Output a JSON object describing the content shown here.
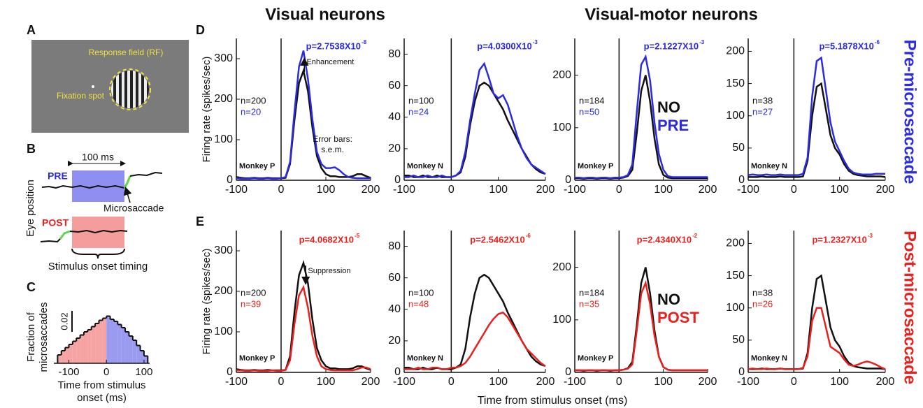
{
  "headers": {
    "visual": "Visual neurons",
    "visual_motor": "Visual-motor neurons",
    "pre": "Pre-microsaccade",
    "post": "Post-microsaccade",
    "x_axis": "Time from stimulus onset (ms)"
  },
  "panels": {
    "A": "A",
    "B": "B",
    "C": "C",
    "D": "D",
    "E": "E"
  },
  "panel_a": {
    "rf": "Response field (RF)",
    "fixation": "Fixation spot"
  },
  "panel_b": {
    "duration": "100 ms",
    "pre": "PRE",
    "post": "POST",
    "microsaccade": "Microsaccade",
    "ylabel": "Eye position",
    "onset": "Stimulus onset timing"
  },
  "chart_data": [
    {
      "type": "histogram",
      "ylabel": [
        "Fraction of",
        "microsaccades"
      ],
      "xlabel": [
        "Time from stimulus",
        "onset (ms)"
      ],
      "bins": [
        -130,
        -120,
        -110,
        -100,
        -90,
        -80,
        -70,
        -60,
        -50,
        -40,
        -30,
        -20,
        -10,
        0,
        10,
        20,
        30,
        40,
        50,
        60,
        70,
        80,
        90,
        100,
        110
      ],
      "values": [
        0.008,
        0.012,
        0.015,
        0.018,
        0.021,
        0.024,
        0.027,
        0.03,
        0.032,
        0.035,
        0.038,
        0.041,
        0.043,
        0.045,
        0.042,
        0.04,
        0.037,
        0.034,
        0.03,
        0.026,
        0.022,
        0.017,
        0.012,
        0.007
      ],
      "colors": {
        "before": "#f5a3a3",
        "after": "#9a9af0"
      },
      "xlim": [
        -140,
        115
      ],
      "ylim": [
        0,
        0.05
      ],
      "xticks": [
        -100,
        0,
        100
      ],
      "scale_bar": {
        "value": 0.02,
        "label": "0.02"
      }
    },
    {
      "type": "line",
      "ylabel": "Firing rate (spikes/sec)",
      "monkey": "Monkey P",
      "n_labels": [
        "n=200",
        "n=20"
      ],
      "p_value": "p=2.7538X10",
      "p_exponent": "-8",
      "annotations": [
        "Enhancement",
        "Error bars:",
        "s.e.m."
      ],
      "xlim": [
        -100,
        200
      ],
      "ylim": [
        0,
        350
      ],
      "xticks": [
        -100,
        0,
        100,
        200
      ],
      "yticks": [
        0,
        100,
        200,
        300
      ],
      "x": [
        -100,
        -90,
        -80,
        -70,
        -60,
        -50,
        -40,
        -30,
        -20,
        -10,
        0,
        10,
        20,
        30,
        40,
        50,
        60,
        70,
        80,
        90,
        100,
        110,
        120,
        130,
        140,
        150,
        160,
        170,
        180,
        190,
        200
      ],
      "series": [
        {
          "color": "#111111",
          "values": [
            8,
            6,
            5,
            5,
            6,
            5,
            5,
            6,
            5,
            5,
            5,
            6,
            40,
            150,
            240,
            270,
            220,
            130,
            60,
            30,
            15,
            10,
            10,
            8,
            8,
            8,
            10,
            15,
            15,
            10,
            6
          ]
        },
        {
          "color": "#2b2be0",
          "values": [
            5,
            4,
            4,
            4,
            5,
            4,
            4,
            5,
            4,
            4,
            5,
            8,
            45,
            170,
            280,
            320,
            250,
            150,
            70,
            40,
            30,
            30,
            32,
            25,
            15,
            8,
            6,
            5,
            5,
            5,
            5
          ]
        }
      ]
    },
    {
      "type": "line",
      "monkey": "Monkey N",
      "n_labels": [
        "n=100",
        "n=24"
      ],
      "p_value": "p=4.0300X10",
      "p_exponent": "-3",
      "xlim": [
        -100,
        200
      ],
      "ylim": [
        0,
        90
      ],
      "xticks": [
        -100,
        0,
        100,
        200
      ],
      "yticks": [
        0,
        20,
        40,
        60,
        80
      ],
      "x": [
        -100,
        -90,
        -80,
        -70,
        -60,
        -50,
        -40,
        -30,
        -20,
        -10,
        0,
        10,
        20,
        30,
        40,
        50,
        60,
        70,
        80,
        90,
        100,
        110,
        120,
        130,
        140,
        150,
        160,
        170,
        180,
        190,
        200
      ],
      "series": [
        {
          "color": "#111111",
          "values": [
            3,
            3,
            2,
            2,
            3,
            2,
            2,
            3,
            2,
            2,
            2,
            3,
            5,
            15,
            35,
            50,
            60,
            62,
            60,
            55,
            50,
            45,
            38,
            32,
            26,
            20,
            15,
            10,
            7,
            5,
            4
          ]
        },
        {
          "color": "#2b2be0",
          "values": [
            2,
            2,
            3,
            2,
            2,
            3,
            2,
            2,
            3,
            2,
            2,
            3,
            6,
            18,
            38,
            55,
            70,
            74,
            65,
            55,
            52,
            54,
            48,
            38,
            28,
            20,
            14,
            10,
            8,
            6,
            4
          ]
        }
      ]
    },
    {
      "type": "line",
      "monkey": "Monkey P",
      "n_labels": [
        "n=184",
        "n=50"
      ],
      "p_value": "p=2.1227X10",
      "p_exponent": "-3",
      "legend": true,
      "xlim": [
        -100,
        200
      ],
      "ylim": [
        0,
        270
      ],
      "xticks": [
        -100,
        0,
        100,
        200
      ],
      "yticks": [
        0,
        100,
        200
      ],
      "x": [
        -100,
        -90,
        -80,
        -70,
        -60,
        -50,
        -40,
        -30,
        -20,
        -10,
        0,
        10,
        20,
        30,
        40,
        50,
        60,
        70,
        80,
        90,
        100,
        110,
        120,
        130,
        140,
        150,
        160,
        170,
        180,
        190,
        200
      ],
      "series": [
        {
          "name": "NO",
          "color": "#111111",
          "values": [
            4,
            4,
            3,
            4,
            4,
            3,
            4,
            4,
            3,
            4,
            4,
            5,
            8,
            20,
            90,
            170,
            200,
            150,
            80,
            30,
            10,
            5,
            4,
            4,
            4,
            4,
            4,
            4,
            4,
            4,
            4
          ]
        },
        {
          "name": "PRE",
          "color": "#2b2be0",
          "values": [
            5,
            5,
            4,
            5,
            5,
            4,
            5,
            5,
            4,
            5,
            5,
            6,
            10,
            30,
            130,
            220,
            235,
            190,
            110,
            50,
            20,
            8,
            6,
            6,
            6,
            6,
            6,
            6,
            6,
            6,
            6
          ]
        }
      ]
    },
    {
      "type": "line",
      "monkey": "Monkey N",
      "n_labels": [
        "n=38",
        "n=27"
      ],
      "p_value": "p=5.1878X10",
      "p_exponent": "-6",
      "xlim": [
        -100,
        200
      ],
      "ylim": [
        0,
        220
      ],
      "xticks": [
        -100,
        0,
        100,
        200
      ],
      "yticks": [
        0,
        50,
        100,
        150,
        200
      ],
      "x": [
        -100,
        -90,
        -80,
        -70,
        -60,
        -50,
        -40,
        -30,
        -20,
        -10,
        0,
        10,
        20,
        30,
        40,
        50,
        60,
        70,
        80,
        90,
        100,
        110,
        120,
        130,
        140,
        150,
        160,
        170,
        180,
        190,
        200
      ],
      "series": [
        {
          "color": "#111111",
          "values": [
            5,
            5,
            5,
            6,
            5,
            5,
            5,
            6,
            5,
            5,
            5,
            5,
            6,
            30,
            100,
            145,
            150,
            110,
            70,
            50,
            40,
            25,
            15,
            10,
            8,
            7,
            6,
            6,
            6,
            6,
            5
          ]
        },
        {
          "color": "#2b2be0",
          "values": [
            8,
            9,
            8,
            8,
            9,
            8,
            8,
            9,
            8,
            8,
            8,
            8,
            10,
            35,
            130,
            185,
            190,
            140,
            90,
            60,
            45,
            30,
            18,
            12,
            10,
            9,
            9,
            9,
            10,
            10,
            10
          ]
        }
      ]
    },
    {
      "type": "line",
      "ylabel": "Firing rate (spikes/sec)",
      "monkey": "Monkey P",
      "n_labels": [
        "n=200",
        "n=39"
      ],
      "p_value": "p=4.0682X10",
      "p_exponent": "-5",
      "annotations": [
        "Suppression"
      ],
      "xlim": [
        -100,
        200
      ],
      "ylim": [
        0,
        350
      ],
      "xticks": [
        -100,
        0,
        100,
        200
      ],
      "yticks": [
        0,
        100,
        200,
        300
      ],
      "x": [
        -100,
        -90,
        -80,
        -70,
        -60,
        -50,
        -40,
        -30,
        -20,
        -10,
        0,
        10,
        20,
        30,
        40,
        50,
        60,
        70,
        80,
        90,
        100,
        110,
        120,
        130,
        140,
        150,
        160,
        170,
        180,
        190,
        200
      ],
      "series": [
        {
          "color": "#111111",
          "values": [
            8,
            6,
            5,
            5,
            6,
            5,
            5,
            6,
            5,
            5,
            5,
            6,
            40,
            150,
            240,
            270,
            220,
            130,
            60,
            30,
            15,
            10,
            10,
            8,
            8,
            8,
            10,
            15,
            15,
            10,
            6
          ]
        },
        {
          "color": "#e8201e",
          "values": [
            5,
            5,
            4,
            4,
            5,
            4,
            4,
            4,
            5,
            4,
            4,
            6,
            30,
            120,
            190,
            210,
            160,
            90,
            40,
            15,
            8,
            6,
            5,
            5,
            5,
            5,
            5,
            8,
            12,
            12,
            8
          ]
        }
      ]
    },
    {
      "type": "line",
      "monkey": "Monkey N",
      "n_labels": [
        "n=100",
        "n=48"
      ],
      "p_value": "p=2.5462X10",
      "p_exponent": "-6",
      "xlim": [
        -100,
        200
      ],
      "ylim": [
        0,
        90
      ],
      "xticks": [
        -100,
        0,
        100,
        200
      ],
      "yticks": [
        0,
        20,
        40,
        60,
        80
      ],
      "x": [
        -100,
        -90,
        -80,
        -70,
        -60,
        -50,
        -40,
        -30,
        -20,
        -10,
        0,
        10,
        20,
        30,
        40,
        50,
        60,
        70,
        80,
        90,
        100,
        110,
        120,
        130,
        140,
        150,
        160,
        170,
        180,
        190,
        200
      ],
      "series": [
        {
          "color": "#111111",
          "values": [
            3,
            3,
            2,
            2,
            3,
            2,
            2,
            3,
            2,
            2,
            2,
            3,
            5,
            15,
            35,
            50,
            60,
            62,
            60,
            55,
            50,
            45,
            38,
            32,
            26,
            20,
            15,
            10,
            7,
            5,
            4
          ]
        },
        {
          "color": "#e8201e",
          "values": [
            2,
            2,
            2,
            3,
            2,
            2,
            3,
            3,
            2,
            2,
            3,
            3,
            4,
            6,
            10,
            15,
            20,
            25,
            30,
            34,
            37,
            38,
            35,
            30,
            25,
            20,
            15,
            12,
            9,
            6,
            4
          ]
        }
      ]
    },
    {
      "type": "line",
      "monkey": "Monkey P",
      "n_labels": [
        "n=184",
        "n=35"
      ],
      "p_value": "p=2.4340X10",
      "p_exponent": "-2",
      "legend": true,
      "xlim": [
        -100,
        200
      ],
      "ylim": [
        0,
        270
      ],
      "xticks": [
        -100,
        0,
        100,
        200
      ],
      "yticks": [
        0,
        100,
        200
      ],
      "x": [
        -100,
        -90,
        -80,
        -70,
        -60,
        -50,
        -40,
        -30,
        -20,
        -10,
        0,
        10,
        20,
        30,
        40,
        50,
        60,
        70,
        80,
        90,
        100,
        110,
        120,
        130,
        140,
        150,
        160,
        170,
        180,
        190,
        200
      ],
      "series": [
        {
          "name": "NO",
          "color": "#111111",
          "values": [
            4,
            4,
            3,
            4,
            4,
            3,
            4,
            4,
            3,
            4,
            4,
            5,
            8,
            20,
            90,
            170,
            200,
            150,
            80,
            30,
            10,
            5,
            4,
            4,
            4,
            4,
            4,
            4,
            4,
            4,
            4
          ]
        },
        {
          "name": "POST",
          "color": "#e8201e",
          "values": [
            4,
            4,
            4,
            4,
            4,
            4,
            4,
            4,
            4,
            4,
            4,
            5,
            7,
            15,
            80,
            150,
            170,
            130,
            70,
            30,
            10,
            5,
            4,
            4,
            4,
            4,
            4,
            4,
            4,
            4,
            4
          ]
        }
      ]
    },
    {
      "type": "line",
      "monkey": "Monkey N",
      "n_labels": [
        "n=38",
        "n=26"
      ],
      "p_value": "p=1.2327X10",
      "p_exponent": "-3",
      "xlim": [
        -100,
        200
      ],
      "ylim": [
        0,
        220
      ],
      "xticks": [
        -100,
        0,
        100,
        200
      ],
      "yticks": [
        0,
        50,
        100,
        150,
        200
      ],
      "x": [
        -100,
        -90,
        -80,
        -70,
        -60,
        -50,
        -40,
        -30,
        -20,
        -10,
        0,
        10,
        20,
        30,
        40,
        50,
        60,
        70,
        80,
        90,
        100,
        110,
        120,
        130,
        140,
        150,
        160,
        170,
        180,
        190,
        200
      ],
      "series": [
        {
          "color": "#111111",
          "values": [
            5,
            5,
            5,
            6,
            5,
            5,
            5,
            6,
            5,
            5,
            5,
            5,
            6,
            30,
            100,
            145,
            150,
            110,
            70,
            50,
            40,
            25,
            15,
            10,
            8,
            7,
            6,
            6,
            6,
            6,
            5
          ]
        },
        {
          "color": "#e8201e",
          "values": [
            5,
            6,
            5,
            5,
            6,
            5,
            5,
            6,
            5,
            5,
            5,
            5,
            7,
            25,
            80,
            100,
            100,
            70,
            40,
            35,
            30,
            20,
            12,
            10,
            12,
            15,
            17,
            15,
            12,
            8,
            5
          ]
        }
      ]
    }
  ]
}
